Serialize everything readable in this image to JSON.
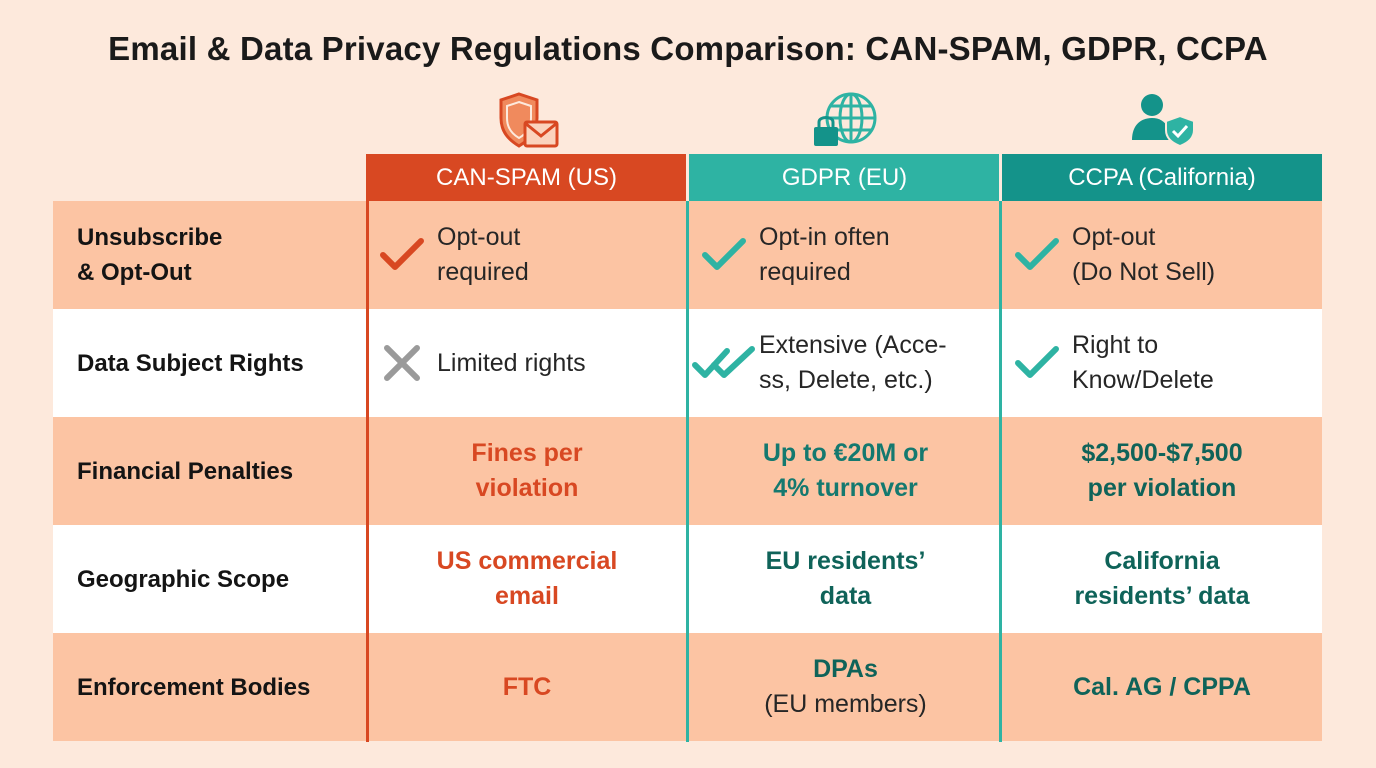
{
  "title": "Email & Data Privacy Regulations Comparison: CAN-SPAM, GDPR, CCPA",
  "icons": {
    "can_spam": "shield-envelope-icon",
    "gdpr": "globe-lock-icon",
    "ccpa": "user-shield-icon"
  },
  "colors": {
    "can_spam": "#d84822",
    "gdpr": "#2eb3a3",
    "ccpa": "#14938a",
    "row_peach": "#fcc4a3",
    "background": "#fde9dc"
  },
  "columns": [
    "CAN-SPAM (US)",
    "GDPR (EU)",
    "CCPA (California)"
  ],
  "rows": [
    {
      "label": [
        "Unsubscribe",
        "& Opt-Out"
      ],
      "cells": [
        {
          "icon": "check-icon",
          "text": [
            "Opt-out",
            "required"
          ]
        },
        {
          "icon": "check-icon",
          "text": [
            "Opt-in often",
            "required"
          ]
        },
        {
          "icon": "check-icon",
          "text": [
            "Opt-out",
            "(Do Not Sell)"
          ]
        }
      ]
    },
    {
      "label": [
        "Data Subject Rights"
      ],
      "cells": [
        {
          "icon": "cross-icon",
          "text": [
            "Limited rights"
          ]
        },
        {
          "icon": "double-check-icon",
          "text": [
            "Extensive (Acce-",
            "ss, Delete, etc.)"
          ]
        },
        {
          "icon": "check-icon",
          "text": [
            "Right to",
            "Know/Delete"
          ]
        }
      ]
    },
    {
      "label": [
        "Financial Penalties"
      ],
      "cells": [
        {
          "text": [
            "Fines per",
            "violation"
          ]
        },
        {
          "text": [
            "Up to €20M or",
            "4% turnover"
          ]
        },
        {
          "text": [
            "$2,500-$7,500",
            "per violation"
          ]
        }
      ]
    },
    {
      "label": [
        "Geographic Scope"
      ],
      "cells": [
        {
          "text": [
            "US commercial",
            "email"
          ]
        },
        {
          "text": [
            "EU residents’",
            "data"
          ]
        },
        {
          "text": [
            "California",
            "residents’ data"
          ]
        }
      ]
    },
    {
      "label": [
        "Enforcement Bodies"
      ],
      "cells": [
        {
          "text": [
            "FTC"
          ]
        },
        {
          "text": [
            "DPAs",
            "(EU members)"
          ]
        },
        {
          "text": [
            "Cal. AG / CPPA"
          ]
        }
      ]
    }
  ]
}
